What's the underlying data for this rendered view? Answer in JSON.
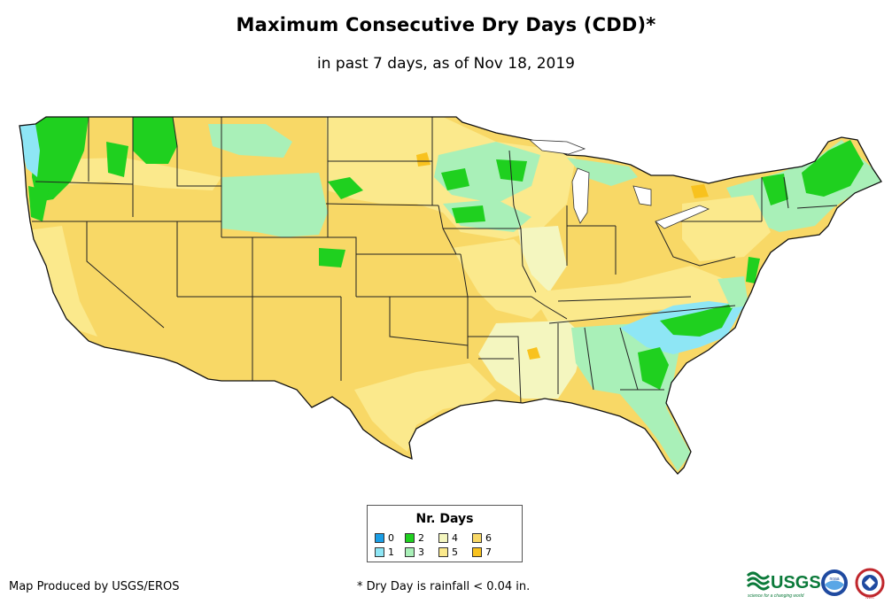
{
  "title": "Maximum Consecutive Dry Days (CDD)*",
  "subtitle": "in past 7 days, as of Nov 18, 2019",
  "legend": {
    "title": "Nr. Days",
    "items": [
      {
        "label": "0",
        "color": "#1a9ee6"
      },
      {
        "label": "1",
        "color": "#8ee6f5"
      },
      {
        "label": "2",
        "color": "#1fd01f"
      },
      {
        "label": "3",
        "color": "#a9f0b8"
      },
      {
        "label": "4",
        "color": "#f4f6bf"
      },
      {
        "label": "5",
        "color": "#fbe98c"
      },
      {
        "label": "6",
        "color": "#f8d866"
      },
      {
        "label": "7",
        "color": "#f8c21e"
      }
    ]
  },
  "footer": {
    "producer": "Map Produced by USGS/EROS",
    "note": "* Dry Day is rainfall < 0.04 in."
  },
  "logos": {
    "usgs_text": "USGS",
    "usgs_tagline": "science for a changing world",
    "noaa_text": "noaa",
    "nws_text": "NWS"
  }
}
